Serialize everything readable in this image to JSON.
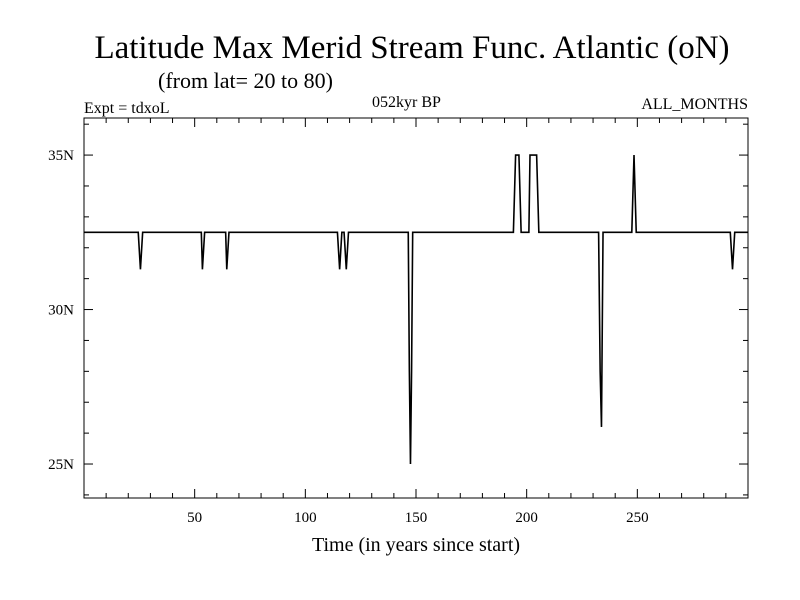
{
  "chart_data": {
    "type": "line",
    "title": "Latitude Max Merid Stream Func. Atlantic (oN)",
    "subtitle": "(from lat= 20 to 80)",
    "left_label": "Expt = tdxoL",
    "center_label": "052kyr BP",
    "right_label": "ALL_MONTHS",
    "xlabel": "Time (in years since start)",
    "ylabel": "",
    "xlim": [
      0,
      300
    ],
    "ylim": [
      23.9,
      36.2
    ],
    "x_ticks": [
      {
        "value": 50,
        "label": "50"
      },
      {
        "value": 100,
        "label": "100"
      },
      {
        "value": 150,
        "label": "150"
      },
      {
        "value": 200,
        "label": "200"
      },
      {
        "value": 250,
        "label": "250"
      }
    ],
    "y_ticks": [
      {
        "value": 25,
        "label": "25N"
      },
      {
        "value": 30,
        "label": "30N"
      },
      {
        "value": 35,
        "label": "35N"
      }
    ],
    "series": [
      {
        "color": "#000000",
        "points": [
          [
            0,
            32.5
          ],
          [
            24.5,
            32.5
          ],
          [
            25.5,
            31.3
          ],
          [
            26.5,
            32.5
          ],
          [
            53,
            32.5
          ],
          [
            53.5,
            31.3
          ],
          [
            54.5,
            32.5
          ],
          [
            64,
            32.5
          ],
          [
            64.5,
            31.3
          ],
          [
            65.5,
            32.5
          ],
          [
            114.5,
            32.5
          ],
          [
            115.5,
            31.3
          ],
          [
            116.5,
            32.5
          ],
          [
            117.5,
            32.5
          ],
          [
            118.5,
            31.3
          ],
          [
            119.5,
            32.5
          ],
          [
            146.5,
            32.5
          ],
          [
            147,
            28
          ],
          [
            147.5,
            25
          ],
          [
            148,
            28
          ],
          [
            148.5,
            32.5
          ],
          [
            194,
            32.5
          ],
          [
            195,
            35
          ],
          [
            196.5,
            35
          ],
          [
            197.5,
            32.5
          ],
          [
            201,
            32.5
          ],
          [
            201.5,
            35
          ],
          [
            204.5,
            35
          ],
          [
            205.5,
            32.5
          ],
          [
            232.5,
            32.5
          ],
          [
            233.2,
            28
          ],
          [
            233.8,
            26.2
          ],
          [
            234.5,
            32.5
          ],
          [
            247.5,
            32.5
          ],
          [
            248.5,
            35
          ],
          [
            249.5,
            32.5
          ],
          [
            292,
            32.5
          ],
          [
            293,
            31.3
          ],
          [
            294,
            32.5
          ],
          [
            300,
            32.5
          ]
        ]
      }
    ],
    "grid": false
  }
}
